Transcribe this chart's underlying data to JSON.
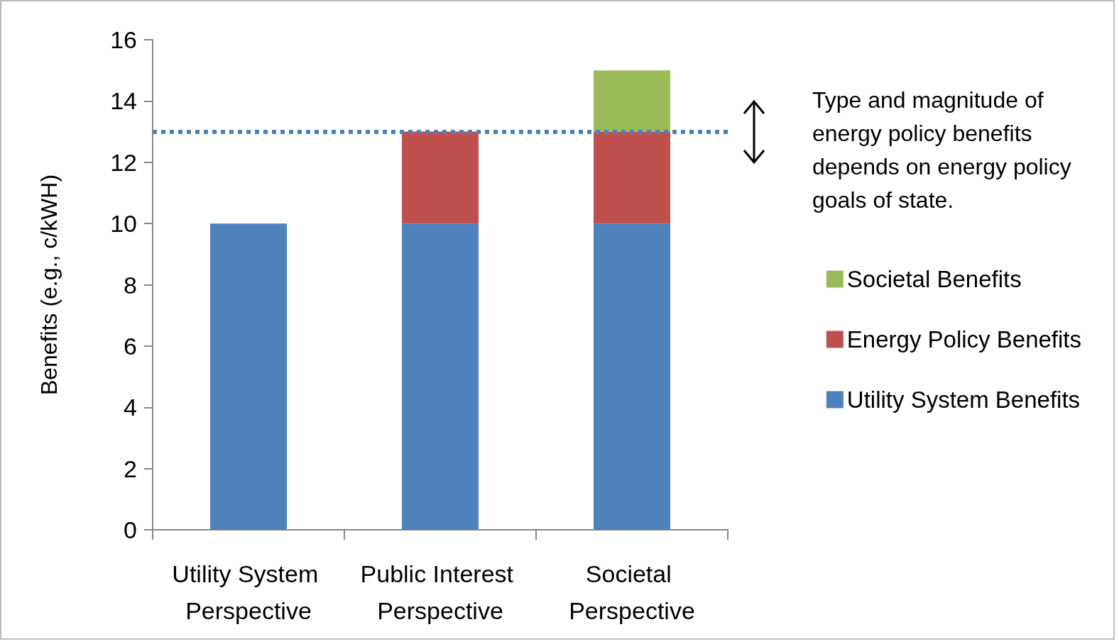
{
  "chart_data": {
    "type": "bar",
    "stacked": true,
    "categories": [
      "Utility System Perspective",
      "Public Interest Perspective",
      "Societal Perspective"
    ],
    "ylabel": "Benefits (e.g., c/kWH)",
    "series": [
      {
        "name": "Utility System Benefits",
        "color": "#4f81bd",
        "values": [
          10,
          10,
          10
        ]
      },
      {
        "name": "Energy Policy Benefits",
        "color": "#c0504d",
        "values": [
          null,
          3,
          3
        ]
      },
      {
        "name": "Societal Benefits",
        "color": "#9bbb59",
        "values": [
          null,
          null,
          2
        ]
      }
    ],
    "ylim": [
      0,
      16
    ],
    "yticks": [
      0,
      2,
      4,
      6,
      8,
      10,
      12,
      14,
      16
    ],
    "ref_lines": [
      {
        "axis": "y",
        "value": 13,
        "color": "#4f81bd",
        "line_style": "dotted"
      }
    ],
    "annotations": [
      "Type and magnitude of energy policy benefits depends on energy policy goals of state."
    ],
    "grid": false,
    "legend": "right"
  }
}
